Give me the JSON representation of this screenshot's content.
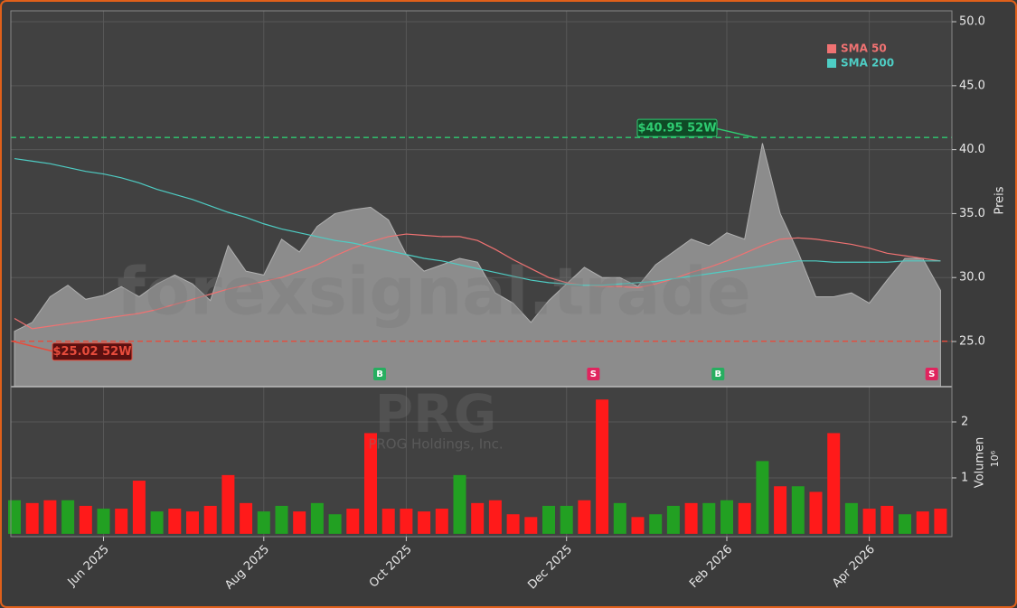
{
  "chart_data": {
    "type": "stock",
    "watermark": "forexsignal.trade",
    "symbol": "PRG",
    "company": "PROG Holdings, Inc.",
    "categories": [
      null,
      null,
      null,
      null,
      null,
      "Jun 2025",
      null,
      null,
      null,
      null,
      null,
      null,
      null,
      null,
      "Aug 2025",
      null,
      null,
      null,
      null,
      null,
      null,
      null,
      "Oct 2025",
      null,
      null,
      null,
      null,
      null,
      null,
      null,
      null,
      "Dec 2025",
      null,
      null,
      null,
      null,
      null,
      null,
      null,
      null,
      "Feb 2026",
      null,
      null,
      null,
      null,
      null,
      null,
      null,
      "Apr 2026",
      null,
      null,
      null,
      null
    ],
    "ylabel": "Preis",
    "ylim": [
      21.47,
      50.85
    ],
    "yticks": [
      {
        "value": 25,
        "label": "25.0"
      },
      {
        "value": 30,
        "label": "30.0"
      },
      {
        "value": 35,
        "label": "35.0"
      },
      {
        "value": 40,
        "label": "40.0"
      },
      {
        "value": 45,
        "label": "45.0"
      },
      {
        "value": 50,
        "label": "50.0"
      }
    ],
    "grid": true,
    "price": {
      "color": "#8c8c8c",
      "values": [
        25.8,
        26.5,
        28.5,
        29.4,
        28.3,
        28.6,
        29.3,
        28.5,
        29.5,
        30.2,
        29.5,
        28.2,
        32.5,
        30.5,
        30.2,
        33,
        32,
        34,
        35,
        35.3,
        35.5,
        34.5,
        31.8,
        30.5,
        31,
        31.5,
        31.2,
        28.8,
        28,
        26.5,
        28.2,
        29.5,
        30.8,
        30,
        30,
        29.3,
        31,
        32,
        33,
        32.5,
        33.5,
        33,
        40.5,
        35,
        32,
        28.5,
        28.5,
        28.8,
        28,
        29.8,
        31.5,
        31.5,
        29
      ]
    },
    "series": [
      {
        "name": "SMA 50",
        "color": "#f07272",
        "values": [
          26.8,
          26.0,
          26.2,
          26.4,
          26.6,
          26.8,
          27.0,
          27.2,
          27.5,
          27.9,
          28.3,
          28.7,
          29.1,
          29.4,
          29.7,
          30.0,
          30.5,
          31.0,
          31.7,
          32.3,
          32.8,
          33.2,
          33.4,
          33.3,
          33.2,
          33.2,
          32.9,
          32.2,
          31.4,
          30.7,
          30.0,
          29.6,
          29.4,
          29.3,
          29.3,
          29.2,
          29.5,
          29.9,
          30.4,
          30.8,
          31.3,
          31.9,
          32.5,
          33.0,
          33.1,
          33.0,
          32.8,
          32.6,
          32.3,
          31.9,
          31.7,
          31.5,
          31.3
        ]
      },
      {
        "name": "SMA 200",
        "color": "#4ecdc4",
        "values": [
          39.3,
          39.1,
          38.9,
          38.6,
          38.3,
          38.1,
          37.8,
          37.4,
          36.9,
          36.5,
          36.1,
          35.6,
          35.1,
          34.7,
          34.2,
          33.8,
          33.5,
          33.2,
          32.9,
          32.7,
          32.4,
          32.1,
          31.8,
          31.5,
          31.3,
          31.0,
          30.7,
          30.4,
          30.1,
          29.8,
          29.6,
          29.5,
          29.4,
          29.4,
          29.5,
          29.6,
          29.7,
          29.9,
          30.1,
          30.3,
          30.5,
          30.7,
          30.9,
          31.1,
          31.3,
          31.3,
          31.2,
          31.2,
          31.2,
          31.2,
          31.3,
          31.3,
          31.3
        ]
      }
    ],
    "legend": "upper right",
    "levels": [
      {
        "value": 40.95,
        "label": "$40.95 52W",
        "color": "#2ecc71"
      },
      {
        "value": 25.02,
        "label": "$25.02 52W",
        "color": "#e74c3c"
      }
    ],
    "signals": [
      {
        "label": "B",
        "at": 20,
        "color": "#27ae60"
      },
      {
        "label": "S",
        "at": 32,
        "color": "#e0245e"
      },
      {
        "label": "B",
        "at": 39,
        "color": "#27ae60"
      },
      {
        "label": "S",
        "at": 51,
        "color": "#e0245e"
      }
    ],
    "volume": {
      "label": "Volumen",
      "scale_label": "10⁶",
      "ylim": [
        -0.05,
        2.63
      ],
      "yticks": [
        1,
        2
      ],
      "values": [
        0.6,
        0.55,
        0.6,
        0.6,
        0.5,
        0.45,
        0.45,
        0.95,
        0.4,
        0.45,
        0.4,
        0.5,
        1.05,
        0.55,
        0.4,
        0.5,
        0.4,
        0.55,
        0.35,
        0.45,
        1.8,
        0.45,
        0.45,
        0.4,
        0.45,
        1.05,
        0.55,
        0.6,
        0.35,
        0.3,
        0.5,
        0.5,
        0.6,
        2.4,
        0.55,
        0.3,
        0.35,
        0.5,
        0.55,
        0.55,
        0.6,
        0.55,
        1.3,
        0.85,
        0.85,
        0.75,
        1.8,
        0.55,
        0.45,
        0.5,
        0.35,
        0.4,
        0.45
      ],
      "colors": [
        "#22a022",
        "#ff1a1a",
        "#ff1a1a",
        "#22a022",
        "#ff1a1a",
        "#22a022",
        "#ff1a1a",
        "#ff1a1a",
        "#22a022",
        "#ff1a1a",
        "#ff1a1a",
        "#ff1a1a",
        "#ff1a1a",
        "#ff1a1a",
        "#22a022",
        "#22a022",
        "#ff1a1a",
        "#22a022",
        "#22a022",
        "#ff1a1a",
        "#ff1a1a",
        "#ff1a1a",
        "#ff1a1a",
        "#ff1a1a",
        "#ff1a1a",
        "#22a022",
        "#ff1a1a",
        "#ff1a1a",
        "#ff1a1a",
        "#ff1a1a",
        "#22a022",
        "#22a022",
        "#ff1a1a",
        "#ff1a1a",
        "#22a022",
        "#ff1a1a",
        "#22a022",
        "#22a022",
        "#ff1a1a",
        "#22a022",
        "#22a022",
        "#ff1a1a",
        "#22a022",
        "#ff1a1a",
        "#22a022",
        "#ff1a1a",
        "#ff1a1a",
        "#22a022",
        "#ff1a1a",
        "#ff1a1a",
        "#22a022",
        "#ff1a1a",
        "#ff1a1a"
      ]
    }
  }
}
